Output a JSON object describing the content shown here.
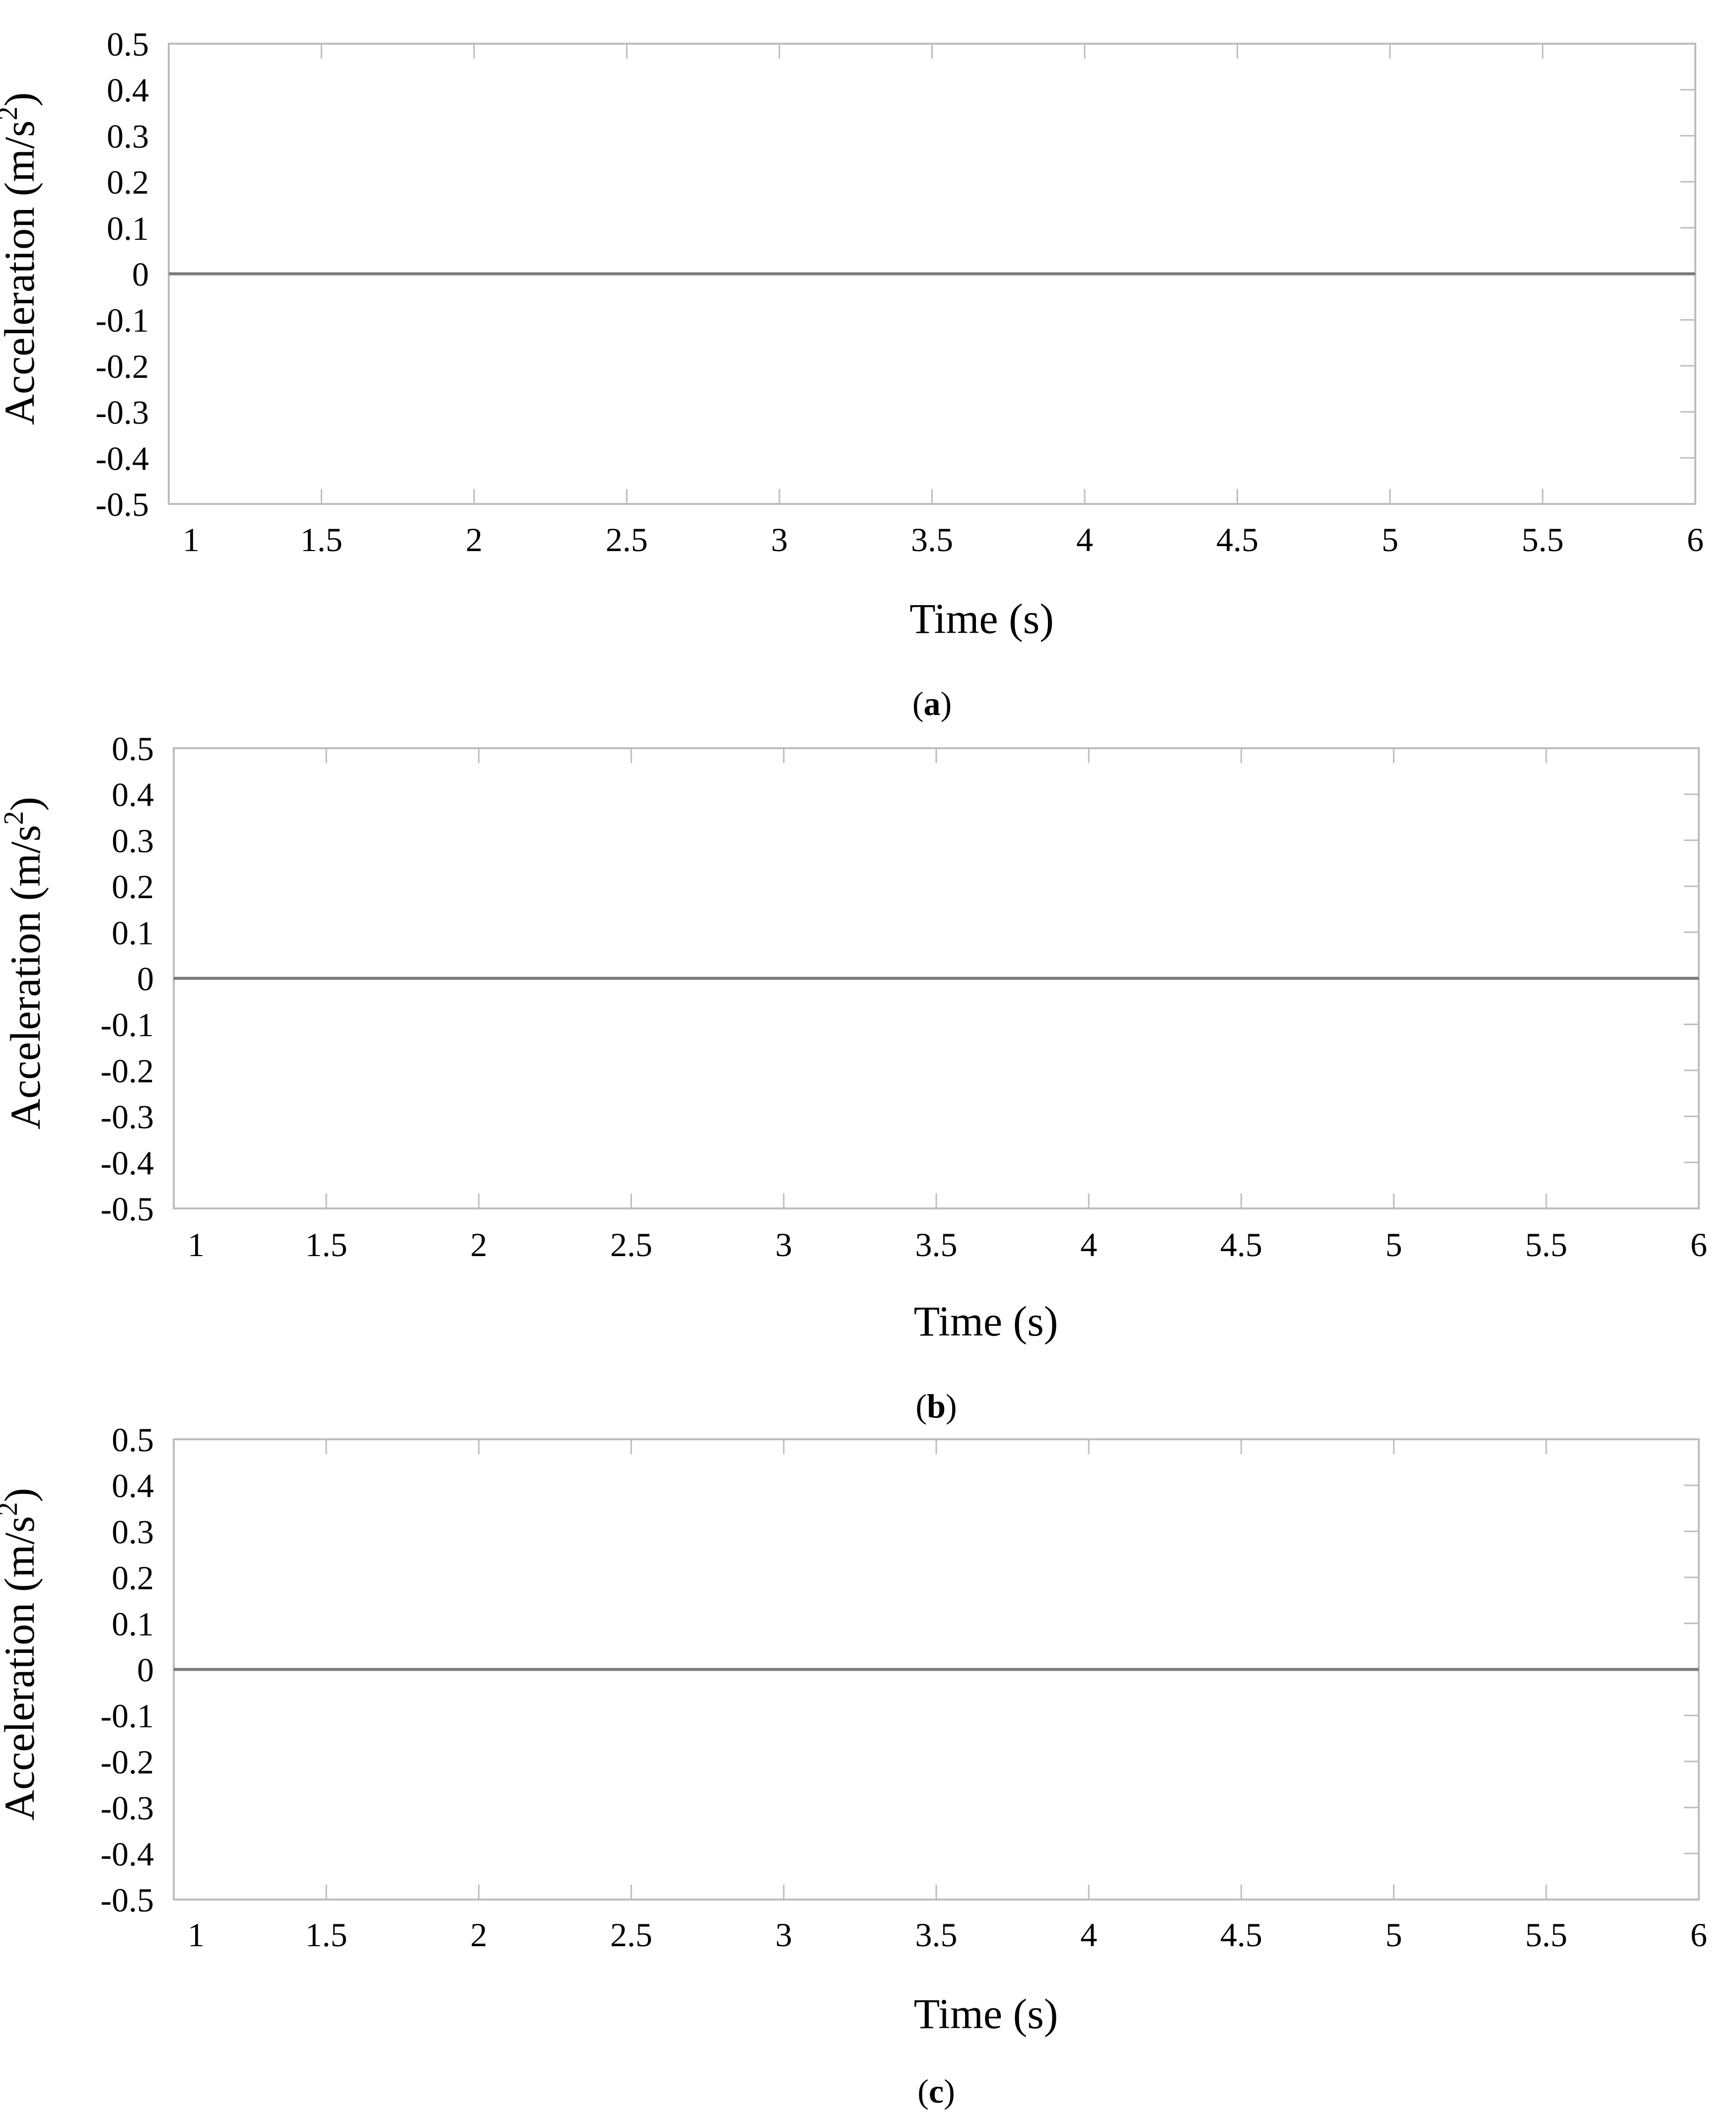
{
  "chart_data": [
    {
      "type": "line",
      "panel_label": "a",
      "xlabel": "Time (s)",
      "ylabel": "Acceleration (m/s",
      "ylabel_sup": "2",
      "ylabel_close": ")",
      "xlim": [
        1,
        6
      ],
      "ylim": [
        -0.5,
        0.5
      ],
      "x_ticks": [
        "1",
        "1.5",
        "2",
        "2.5",
        "3",
        "3.5",
        "4",
        "4.5",
        "5",
        "5.5",
        "6"
      ],
      "y_ticks": [
        "0.5",
        "0.4",
        "0.3",
        "0.2",
        "0.1",
        "0",
        "-0.1",
        "-0.2",
        "-0.3",
        "-0.4",
        "-0.5"
      ],
      "grid": true,
      "series": [
        {
          "x": [
            1,
            6
          ],
          "y": [
            0,
            0
          ]
        }
      ]
    },
    {
      "type": "line",
      "panel_label": "b",
      "xlabel": "Time (s)",
      "ylabel": "Acceleration (m/s",
      "ylabel_sup": "2",
      "ylabel_close": ")",
      "xlim": [
        1,
        6
      ],
      "ylim": [
        -0.5,
        0.5
      ],
      "x_ticks": [
        "1",
        "1.5",
        "2",
        "2.5",
        "3",
        "3.5",
        "4",
        "4.5",
        "5",
        "5.5",
        "6"
      ],
      "y_ticks": [
        "0.5",
        "0.4",
        "0.3",
        "0.2",
        "0.1",
        "0",
        "-0.1",
        "-0.2",
        "-0.3",
        "-0.4",
        "-0.5"
      ],
      "grid": true,
      "series": [
        {
          "x": [
            1,
            6
          ],
          "y": [
            0,
            0
          ]
        }
      ]
    },
    {
      "type": "line",
      "panel_label": "c",
      "xlabel": "Time (s)",
      "ylabel": "Acceleration (m/s",
      "ylabel_sup": "2",
      "ylabel_close": ")",
      "xlim": [
        1,
        6
      ],
      "ylim": [
        -0.5,
        0.5
      ],
      "x_ticks": [
        "1",
        "1.5",
        "2",
        "2.5",
        "3",
        "3.5",
        "4",
        "4.5",
        "5",
        "5.5",
        "6"
      ],
      "y_ticks": [
        "0.5",
        "0.4",
        "0.3",
        "0.2",
        "0.1",
        "0",
        "-0.1",
        "-0.2",
        "-0.3",
        "-0.4",
        "-0.5"
      ],
      "grid": true,
      "series": [
        {
          "x": [
            1,
            6
          ],
          "y": [
            0,
            0
          ]
        }
      ]
    }
  ]
}
